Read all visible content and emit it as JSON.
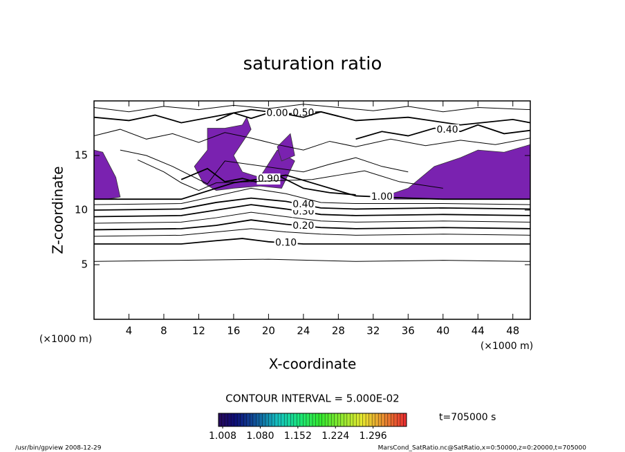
{
  "chart_data": {
    "type": "contour",
    "title": "saturation ratio",
    "xlabel": "X-coordinate",
    "ylabel": "Z-coordinate",
    "x_unit_label": "(×1000 m)",
    "y_unit_label": "(×1000 m)",
    "xlim": [
      0,
      50
    ],
    "xticks": [
      4,
      8,
      12,
      16,
      20,
      24,
      28,
      32,
      36,
      40,
      44,
      48
    ],
    "ylim": [
      0,
      20
    ],
    "yticks": [
      5,
      10,
      15
    ],
    "fill_color": "#7a22b0",
    "line_color": "#000000",
    "filled_regions": [
      {
        "x": [
          0,
          1.5,
          3,
          2.5,
          1,
          0
        ],
        "z": [
          11,
          11,
          11.2,
          13,
          15.3,
          15.5
        ]
      },
      {
        "x": [
          11.5,
          13,
          13,
          15,
          17,
          17.5,
          18,
          16,
          17,
          19,
          21,
          23,
          21.5,
          19,
          16,
          14,
          12.5
        ],
        "z": [
          14,
          15.5,
          17.5,
          17.5,
          17.8,
          18.5,
          17.4,
          15,
          13.5,
          13,
          15.5,
          14.5,
          12,
          12.2,
          12,
          11.8,
          12.5
        ]
      },
      {
        "x": [
          21,
          22.5,
          23,
          21.5
        ],
        "z": [
          15.8,
          17,
          15,
          14.5
        ]
      },
      {
        "x": [
          33,
          38,
          42,
          46,
          50,
          50,
          47,
          44,
          42,
          39,
          36,
          33
        ],
        "z": [
          11,
          11,
          11,
          11,
          11,
          16,
          15.3,
          15.5,
          14.8,
          14,
          12,
          11.2
        ]
      }
    ],
    "contours": [
      {
        "x": [
          0,
          10,
          20,
          30,
          40,
          50
        ],
        "z": [
          5.3,
          5.4,
          5.5,
          5.3,
          5.4,
          5.3
        ]
      },
      {
        "level": {
          "value": 0.1,
          "label": "0.10"
        },
        "x": [
          0,
          10,
          14,
          17,
          20,
          24,
          30,
          40,
          50
        ],
        "z": [
          6.9,
          6.9,
          7.2,
          7.4,
          7.1,
          6.9,
          6.9,
          6.9,
          6.9
        ]
      },
      {
        "x": [
          0,
          10,
          14,
          18,
          22,
          26,
          30,
          40,
          50
        ],
        "z": [
          7.6,
          7.7,
          8.0,
          8.3,
          8.0,
          7.8,
          7.7,
          7.8,
          7.7
        ]
      },
      {
        "level": {
          "value": 0.2,
          "label": "0.20"
        },
        "x": [
          0,
          10,
          14,
          18,
          22,
          26,
          30,
          40,
          50
        ],
        "z": [
          8.2,
          8.3,
          8.6,
          9.1,
          8.7,
          8.4,
          8.3,
          8.4,
          8.3
        ]
      },
      {
        "x": [
          0,
          10,
          14,
          18,
          22,
          26,
          30,
          40,
          50
        ],
        "z": [
          8.8,
          8.9,
          9.3,
          9.8,
          9.4,
          9.0,
          8.9,
          9.0,
          8.9
        ]
      },
      {
        "level": {
          "value": 0.3,
          "label": "0.30"
        },
        "x": [
          0,
          10,
          14,
          18,
          22,
          26,
          30,
          40,
          50
        ],
        "z": [
          9.4,
          9.5,
          10.0,
          10.5,
          10.1,
          9.6,
          9.5,
          9.6,
          9.5
        ]
      },
      {
        "level": {
          "value": 0.4,
          "label": "0.40"
        },
        "x": [
          0,
          10,
          14,
          18,
          22,
          26,
          30,
          40,
          50
        ],
        "z": [
          10.0,
          10.1,
          10.7,
          11.1,
          10.8,
          10.2,
          10.1,
          10.2,
          10.1
        ]
      },
      {
        "x": [
          0,
          10,
          14,
          18,
          22,
          26,
          30,
          40,
          50
        ],
        "z": [
          10.5,
          10.6,
          11.3,
          12.0,
          11.5,
          10.7,
          10.6,
          10.6,
          10.5
        ]
      },
      {
        "level": {
          "value": 1,
          "label": "1.00"
        },
        "x": [
          0,
          10,
          16,
          22,
          30,
          36,
          40,
          46,
          50
        ],
        "z": [
          11,
          11,
          12.5,
          13.2,
          11.3,
          11.1,
          11,
          11,
          11
        ]
      },
      {
        "level": {
          "value": 0.9,
          "label": "0.90"
        },
        "x": [
          10,
          13,
          15,
          17,
          19,
          21,
          24,
          27,
          30
        ],
        "z": [
          12.8,
          13.8,
          12.6,
          12.9,
          12.5,
          13.2,
          12.0,
          11.6,
          11.4
        ]
      },
      {
        "level": {
          "value": 0.5,
          "label": "0.50"
        },
        "x": [
          0,
          4,
          7,
          10,
          14,
          18,
          22,
          26,
          30,
          36,
          42,
          48,
          50
        ],
        "z": [
          18.5,
          18.2,
          18.7,
          18.0,
          18.6,
          19.2,
          18.8,
          19.0,
          18.2,
          18.5,
          17.8,
          18.3,
          18.0
        ]
      },
      {
        "level": {
          "value": 0,
          "label": "0.00"
        },
        "x": [
          14,
          16,
          18,
          20,
          22,
          24,
          26,
          28
        ],
        "z": [
          18.2,
          18.9,
          18.4,
          18.9,
          18.8,
          18.5,
          19.0,
          18.6
        ]
      },
      {
        "level": {
          "value": 0.4,
          "label": "0.40"
        },
        "x": [
          30,
          33,
          36,
          39,
          42,
          44,
          47,
          50
        ],
        "z": [
          16.5,
          17.2,
          16.8,
          17.5,
          17.2,
          17.8,
          17.0,
          17.3
        ]
      },
      {
        "x": [
          0,
          3,
          6,
          9,
          12,
          15,
          18,
          21,
          24,
          27,
          30,
          34,
          38,
          42,
          46,
          50
        ],
        "z": [
          16.8,
          17.4,
          16.5,
          17.0,
          16.2,
          17.1,
          16.6,
          16.0,
          15.5,
          16.3,
          15.8,
          16.5,
          15.9,
          16.4,
          16.0,
          16.6
        ]
      },
      {
        "x": [
          3,
          6,
          9,
          11,
          13,
          15,
          24,
          27,
          30,
          33,
          36
        ],
        "z": [
          15.5,
          15.0,
          14.0,
          13.2,
          12.4,
          14.5,
          13.5,
          14.2,
          14.8,
          14.0,
          13.5
        ]
      },
      {
        "x": [
          5,
          8,
          10,
          12,
          14,
          25,
          28,
          31,
          35,
          40
        ],
        "z": [
          14.6,
          13.5,
          12.5,
          11.8,
          12.5,
          12.8,
          13.2,
          13.6,
          12.6,
          12.0
        ]
      },
      {
        "x": [
          0,
          4,
          8,
          12,
          16,
          20,
          24,
          28,
          32,
          36,
          40,
          44,
          50
        ],
        "z": [
          19.4,
          19.0,
          19.5,
          19.2,
          19.6,
          19.3,
          19.7,
          19.4,
          19.1,
          19.5,
          19.0,
          19.4,
          19.2
        ]
      }
    ],
    "contour_interval_label": "CONTOUR INTERVAL = 5.000E-02",
    "clim": [
      1.0,
      1.36
    ],
    "colormap": "rainbow",
    "cticks": [
      1.008,
      {
        "value": 1.08,
        "label": "1.080"
      },
      1.152,
      1.224,
      1.296
    ],
    "time_label": "t=705000 s",
    "footer_left": "/usr/bin/gpview  2008-12-29",
    "footer_right": "MarsCond_SatRatio.nc@SatRatio,x=0:50000,z=0:20000,t=705000"
  }
}
